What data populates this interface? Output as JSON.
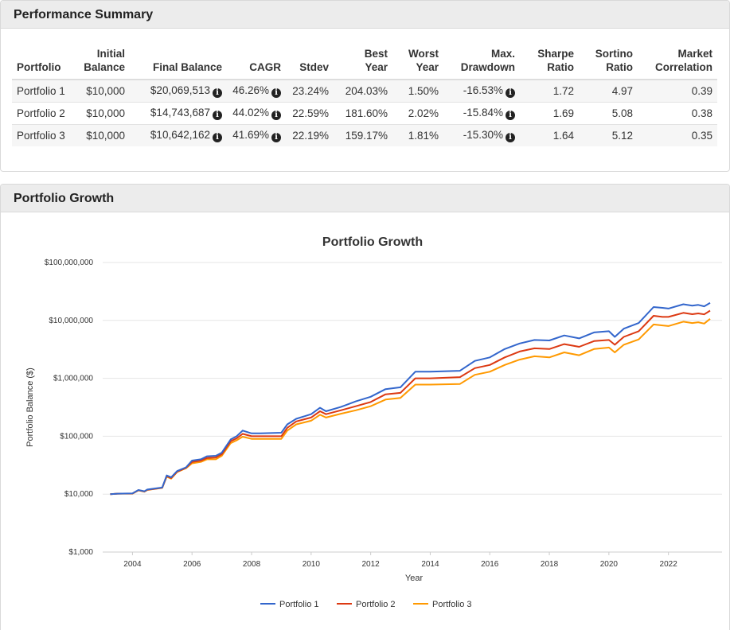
{
  "summary": {
    "title": "Performance Summary",
    "headers": [
      {
        "line1": "",
        "line2": "Portfolio"
      },
      {
        "line1": "Initial",
        "line2": "Balance"
      },
      {
        "line1": "",
        "line2": "Final Balance"
      },
      {
        "line1": "",
        "line2": "CAGR"
      },
      {
        "line1": "",
        "line2": "Stdev"
      },
      {
        "line1": "Best",
        "line2": "Year"
      },
      {
        "line1": "Worst",
        "line2": "Year"
      },
      {
        "line1": "Max.",
        "line2": "Drawdown"
      },
      {
        "line1": "Sharpe",
        "line2": "Ratio"
      },
      {
        "line1": "Sortino",
        "line2": "Ratio"
      },
      {
        "line1": "Market",
        "line2": "Correlation"
      }
    ],
    "info_glyph": "i",
    "rows": [
      {
        "name": "Portfolio 1",
        "initial": "$10,000",
        "final": "$20,069,513",
        "cagr": "46.26%",
        "stdev": "23.24%",
        "best": "204.03%",
        "worst": "1.50%",
        "drawdown": "-16.53%",
        "sharpe": "1.72",
        "sortino": "4.97",
        "correlation": "0.39"
      },
      {
        "name": "Portfolio 2",
        "initial": "$10,000",
        "final": "$14,743,687",
        "cagr": "44.02%",
        "stdev": "22.59%",
        "best": "181.60%",
        "worst": "2.02%",
        "drawdown": "-15.84%",
        "sharpe": "1.69",
        "sortino": "5.08",
        "correlation": "0.38"
      },
      {
        "name": "Portfolio 3",
        "initial": "$10,000",
        "final": "$10,642,162",
        "cagr": "41.69%",
        "stdev": "22.19%",
        "best": "159.17%",
        "worst": "1.81%",
        "drawdown": "-15.30%",
        "sharpe": "1.64",
        "sortino": "5.12",
        "correlation": "0.35"
      }
    ]
  },
  "growth": {
    "title": "Portfolio Growth"
  },
  "chart_data": {
    "type": "line",
    "title": "Portfolio Growth",
    "xlabel": "Year",
    "ylabel": "Portfolio Balance ($)",
    "yscale": "log",
    "ylim": [
      1000,
      100000000
    ],
    "xlim": [
      2003.0,
      2023.8
    ],
    "yticks": [
      {
        "value": 1000,
        "label": "$1,000"
      },
      {
        "value": 10000,
        "label": "$10,000"
      },
      {
        "value": 100000,
        "label": "$100,000"
      },
      {
        "value": 1000000,
        "label": "$1,000,000"
      },
      {
        "value": 10000000,
        "label": "$10,000,000"
      },
      {
        "value": 100000000,
        "label": "$100,000,000"
      }
    ],
    "xticks": [
      {
        "value": 2004,
        "label": "2004"
      },
      {
        "value": 2006,
        "label": "2006"
      },
      {
        "value": 2008,
        "label": "2008"
      },
      {
        "value": 2010,
        "label": "2010"
      },
      {
        "value": 2012,
        "label": "2012"
      },
      {
        "value": 2014,
        "label": "2014"
      },
      {
        "value": 2016,
        "label": "2016"
      },
      {
        "value": 2018,
        "label": "2018"
      },
      {
        "value": 2020,
        "label": "2020"
      },
      {
        "value": 2022,
        "label": "2022"
      }
    ],
    "grid": true,
    "legend_position": "bottom-center",
    "x": [
      2003.25,
      2003.5,
      2004.0,
      2004.2,
      2004.4,
      2004.5,
      2004.7,
      2005.0,
      2005.15,
      2005.3,
      2005.5,
      2005.8,
      2006.0,
      2006.3,
      2006.5,
      2006.8,
      2007.0,
      2007.3,
      2007.5,
      2007.7,
      2008.0,
      2008.3,
      2009.0,
      2009.2,
      2009.5,
      2010.0,
      2010.3,
      2010.5,
      2011.0,
      2011.5,
      2012.0,
      2012.5,
      2013.0,
      2013.5,
      2014.0,
      2015.0,
      2015.5,
      2016.0,
      2016.5,
      2017.0,
      2017.5,
      2018.0,
      2018.5,
      2019.0,
      2019.5,
      2020.0,
      2020.2,
      2020.5,
      2021.0,
      2021.5,
      2021.8,
      2022.0,
      2022.5,
      2022.8,
      2023.0,
      2023.2,
      2023.4
    ],
    "series": [
      {
        "name": "Portfolio 1",
        "color": "#3366cc",
        "values": [
          10000,
          10200,
          10300,
          11800,
          11200,
          12000,
          12400,
          13000,
          21000,
          19500,
          25000,
          29000,
          38000,
          40000,
          45000,
          46000,
          52000,
          88000,
          100000,
          125000,
          112000,
          112000,
          115000,
          160000,
          200000,
          240000,
          310000,
          270000,
          320000,
          400000,
          480000,
          650000,
          700000,
          1300000,
          1300000,
          1350000,
          2000000,
          2300000,
          3200000,
          4000000,
          4600000,
          4500000,
          5500000,
          4900000,
          6200000,
          6500000,
          5200000,
          7200000,
          9000000,
          17000000,
          16500000,
          16000000,
          19000000,
          18000000,
          18500000,
          17500000,
          20069513
        ]
      },
      {
        "name": "Portfolio 2",
        "color": "#dc3912",
        "values": [
          10000,
          10200,
          10250,
          11700,
          11100,
          11900,
          12300,
          12900,
          20500,
          19000,
          24500,
          28500,
          36000,
          38000,
          42000,
          43000,
          49000,
          82000,
          92000,
          110000,
          100000,
          100000,
          100000,
          140000,
          180000,
          210000,
          270000,
          240000,
          280000,
          330000,
          390000,
          530000,
          560000,
          1000000,
          1000000,
          1050000,
          1500000,
          1700000,
          2300000,
          2900000,
          3300000,
          3200000,
          3900000,
          3500000,
          4400000,
          4600000,
          3800000,
          5200000,
          6500000,
          12000000,
          11500000,
          11500000,
          13500000,
          12800000,
          13200000,
          12700000,
          14743687
        ]
      },
      {
        "name": "Portfolio 3",
        "color": "#ff9900",
        "values": [
          10000,
          10200,
          10200,
          11600,
          11000,
          11800,
          12200,
          12800,
          20000,
          18500,
          24000,
          28000,
          34000,
          36000,
          40000,
          40000,
          46000,
          76000,
          85000,
          98000,
          90000,
          90000,
          90000,
          125000,
          160000,
          185000,
          235000,
          210000,
          245000,
          280000,
          330000,
          430000,
          460000,
          780000,
          780000,
          800000,
          1150000,
          1300000,
          1700000,
          2100000,
          2400000,
          2300000,
          2800000,
          2500000,
          3200000,
          3400000,
          2800000,
          3800000,
          4700000,
          8500000,
          8200000,
          8000000,
          9500000,
          9000000,
          9300000,
          8800000,
          10642162
        ]
      }
    ]
  }
}
